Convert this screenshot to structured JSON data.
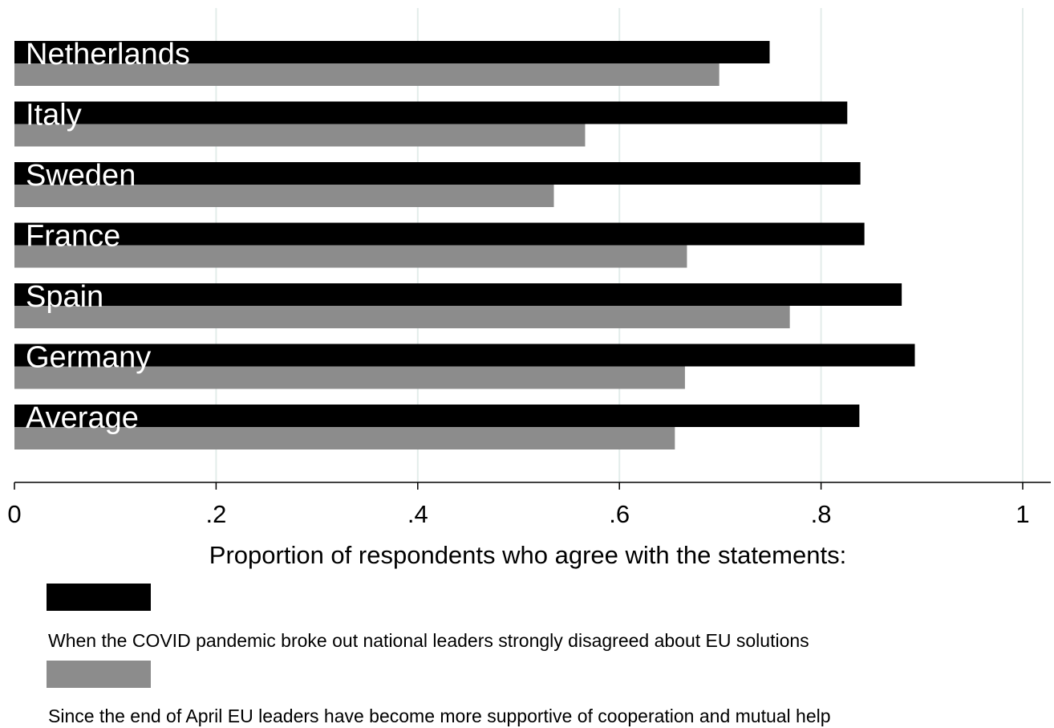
{
  "chart_data": {
    "type": "bar",
    "orientation": "horizontal",
    "categories": [
      "Netherlands",
      "Italy",
      "Sweden",
      "France",
      "Spain",
      "Germany",
      "Average"
    ],
    "series": [
      {
        "name": "When the COVID pandemic broke out national leaders strongly disagreed about EU solutions",
        "color": "#000000",
        "values": [
          0.749,
          0.826,
          0.839,
          0.843,
          0.88,
          0.893,
          0.838
        ]
      },
      {
        "name": "Since the end of April EU leaders have become more supportive of cooperation and mutual help",
        "color": "#8c8c8c",
        "values": [
          0.699,
          0.566,
          0.535,
          0.667,
          0.769,
          0.665,
          0.655
        ]
      }
    ],
    "title": "",
    "xlabel": "Proportion of respondents who agree with the statements:",
    "ylabel": "",
    "xlim": [
      0,
      1
    ],
    "xticks": [
      {
        "value": 0,
        "label": "0"
      },
      {
        "value": 0.2,
        "label": ".2"
      },
      {
        "value": 0.4,
        "label": ".4"
      },
      {
        "value": 0.6,
        "label": ".6"
      },
      {
        "value": 0.8,
        "label": ".8"
      },
      {
        "value": 1,
        "label": "1"
      }
    ],
    "grid": "vertical",
    "grid_color": "#e3ecea",
    "legend_position": "bottom"
  }
}
